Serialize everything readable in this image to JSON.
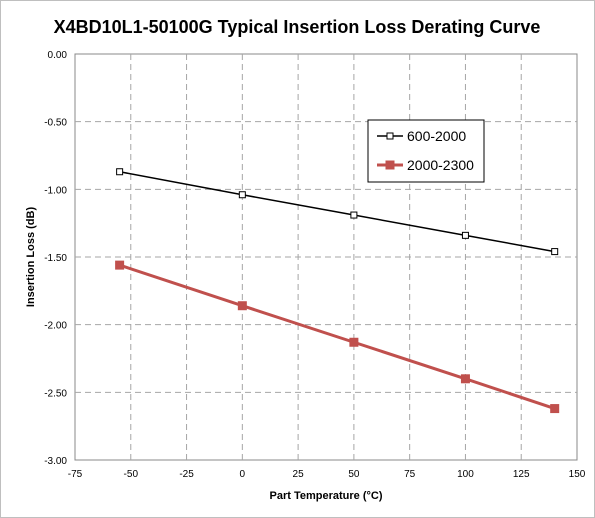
{
  "chart_data": {
    "type": "line",
    "title": "X4BD10L1-50100G Typical  Insertion  Loss Derating  Curve",
    "xlabel": "Part Temperature (°C)",
    "ylabel": "Insertion Loss (dB)",
    "xlim": [
      -75,
      150
    ],
    "ylim": [
      -3.0,
      0.0
    ],
    "x_ticks": [
      -75,
      -50,
      -25,
      0,
      25,
      50,
      75,
      100,
      125,
      150
    ],
    "y_ticks": [
      0.0,
      -0.5,
      -1.0,
      -1.5,
      -2.0,
      -2.5,
      -3.0
    ],
    "x_tick_labels": [
      "-75",
      "-50",
      "-25",
      "0",
      "25",
      "50",
      "75",
      "100",
      "125",
      "150"
    ],
    "y_tick_labels": [
      "0.00",
      "-0.50",
      "-1.00",
      "-1.50",
      "-2.00",
      "-2.50",
      "-3.00"
    ],
    "grid": true,
    "legend_position": "upper-right",
    "series": [
      {
        "name": "600-2000",
        "color": "#000000",
        "marker": "hollow-square",
        "x": [
          -55,
          0,
          50,
          100,
          140
        ],
        "y": [
          -0.87,
          -1.04,
          -1.19,
          -1.34,
          -1.46
        ]
      },
      {
        "name": "2000-2300",
        "color": "#c0504d",
        "marker": "filled-square",
        "x": [
          -55,
          0,
          50,
          100,
          140
        ],
        "y": [
          -1.56,
          -1.86,
          -2.13,
          -2.4,
          -2.62
        ]
      }
    ]
  }
}
